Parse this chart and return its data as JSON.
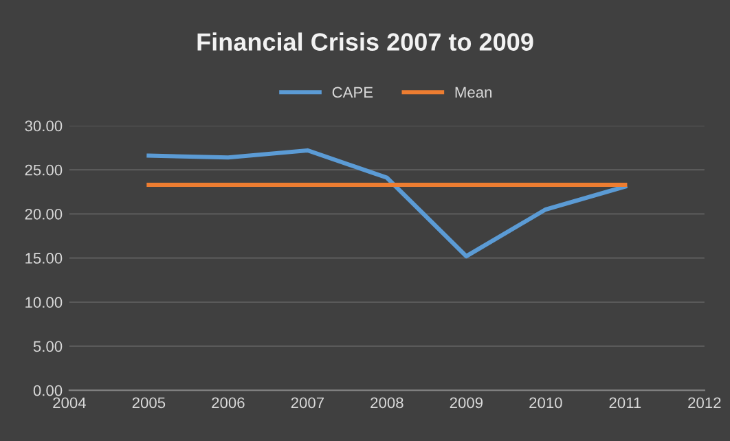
{
  "chart_data": {
    "type": "line",
    "title": "Financial Crisis 2007 to 2009",
    "series": [
      {
        "name": "CAPE",
        "color": "#5b9bd5",
        "x": [
          2005,
          2006,
          2007,
          2008,
          2009,
          2010,
          2011
        ],
        "values": [
          26.6,
          26.4,
          27.2,
          24.1,
          15.2,
          20.5,
          23.1
        ]
      },
      {
        "name": "Mean",
        "color": "#ed7d31",
        "x": [
          2005,
          2011
        ],
        "values": [
          23.3,
          23.3
        ]
      }
    ],
    "xlim": [
      2004,
      2012
    ],
    "xticks": [
      2004,
      2005,
      2006,
      2007,
      2008,
      2009,
      2010,
      2011,
      2012
    ],
    "ylim": [
      0,
      30
    ],
    "yticks": [
      {
        "value": 0,
        "label": "0.00"
      },
      {
        "value": 5,
        "label": "5.00"
      },
      {
        "value": 10,
        "label": "10.00"
      },
      {
        "value": 15,
        "label": "15.00"
      },
      {
        "value": 20,
        "label": "20.00"
      },
      {
        "value": 25,
        "label": "25.00"
      },
      {
        "value": 30,
        "label": "30.00"
      }
    ],
    "grid": "y",
    "legend": "top",
    "marker": "none",
    "line_style": "solid"
  }
}
